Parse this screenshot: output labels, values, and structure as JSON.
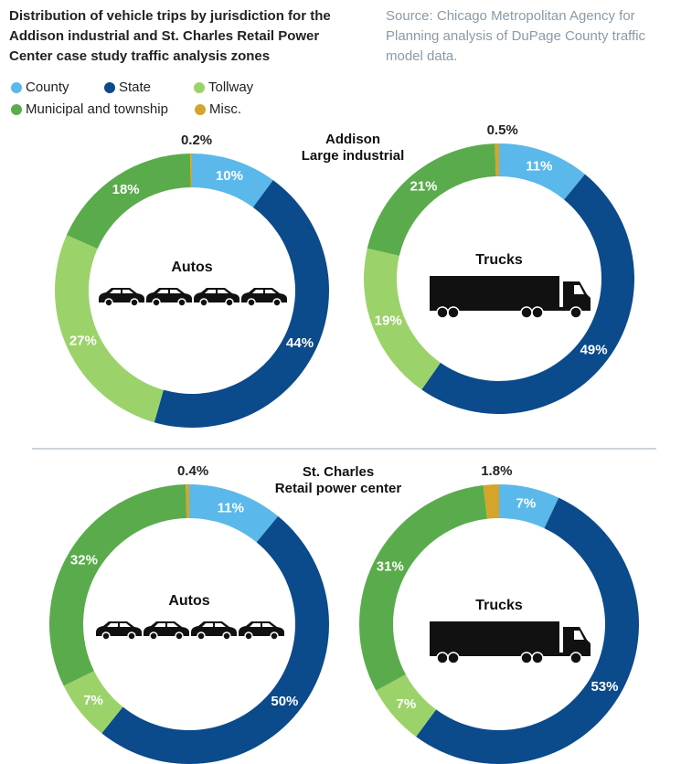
{
  "title": [
    "Distribution of vehicle trips by jurisdiction for the",
    "Addison industrial and St. Charles Retail Power",
    "Center case study traffic analysis zones"
  ],
  "source": [
    "Source:  Chicago Metropolitan Agency for",
    "Planning analysis of DuPage County traffic",
    "model data."
  ],
  "sections": [
    {
      "title": "Addison",
      "subtitle": "Large industrial"
    },
    {
      "title": "St. Charles",
      "subtitle": "Retail power center"
    }
  ],
  "chart_data": [
    {
      "type": "pie",
      "label": "Autos",
      "categories": [
        "County",
        "State",
        "Tollway",
        "Municipal and township",
        "Misc."
      ],
      "colors": [
        "#5bb8ea",
        "#0b4a8b",
        "#9cd26a",
        "#5aab4c",
        "#d4a52a"
      ],
      "values": [
        10,
        44,
        27,
        18,
        0.2
      ],
      "value_labels": [
        "10%",
        "44%",
        "27%",
        "18%",
        "0.2%"
      ]
    },
    {
      "type": "pie",
      "label": "Trucks",
      "categories": [
        "County",
        "State",
        "Tollway",
        "Municipal and township",
        "Misc."
      ],
      "colors": [
        "#5bb8ea",
        "#0b4a8b",
        "#9cd26a",
        "#5aab4c",
        "#d4a52a"
      ],
      "values": [
        11,
        49,
        19,
        21,
        0.5
      ],
      "value_labels": [
        "11%",
        "49%",
        "19%",
        "21%",
        "0.5%"
      ]
    },
    {
      "type": "pie",
      "label": "Autos",
      "categories": [
        "County",
        "State",
        "Tollway",
        "Municipal and township",
        "Misc."
      ],
      "colors": [
        "#5bb8ea",
        "#0b4a8b",
        "#9cd26a",
        "#5aab4c",
        "#d4a52a"
      ],
      "values": [
        11,
        50,
        7,
        32,
        0.4
      ],
      "value_labels": [
        "11%",
        "50%",
        "7%",
        "32%",
        "0.4%"
      ]
    },
    {
      "type": "pie",
      "label": "Trucks",
      "categories": [
        "County",
        "State",
        "Tollway",
        "Municipal and township",
        "Misc."
      ],
      "colors": [
        "#5bb8ea",
        "#0b4a8b",
        "#9cd26a",
        "#5aab4c",
        "#d4a52a"
      ],
      "values": [
        7,
        53,
        7,
        31,
        1.8
      ],
      "value_labels": [
        "7%",
        "53%",
        "7%",
        "31%",
        "1.8%"
      ]
    }
  ]
}
